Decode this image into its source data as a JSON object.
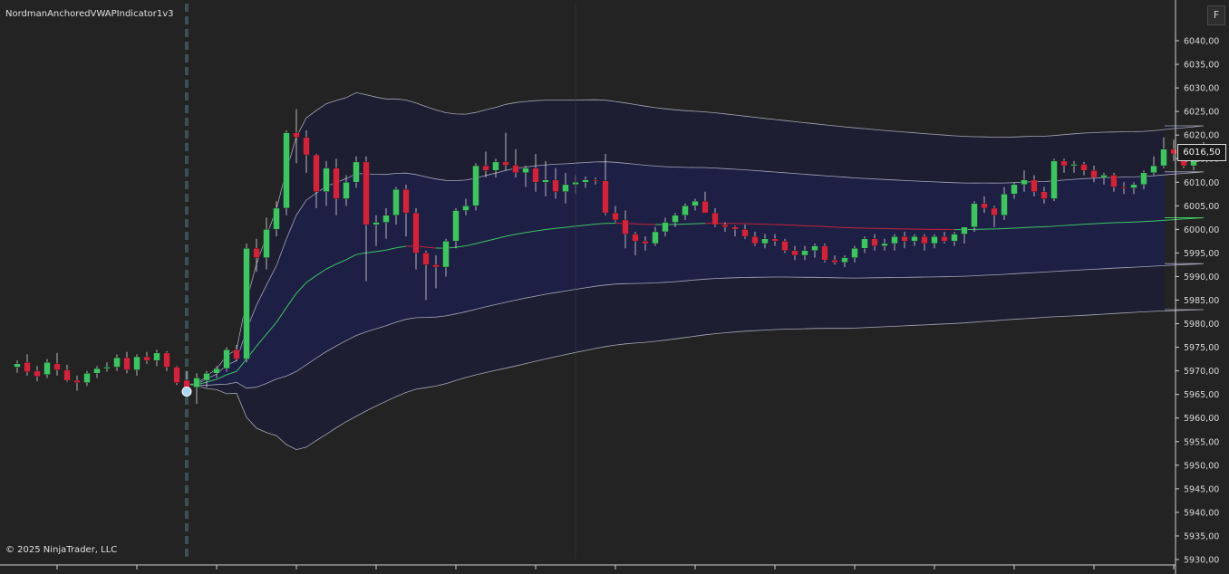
{
  "header": {
    "indicator_label": "NordmanAnchoredVWAPIndicator1v3",
    "f_button": "F"
  },
  "footer": {
    "copyright": "© 2025 NinjaTrader, LLC"
  },
  "colors": {
    "background": "#232323",
    "up": "#3fc463",
    "down": "#d0233c",
    "vwap_above": "#3fc463",
    "vwap_below": "#c8233c",
    "inner_band_fill": "#1d1f45",
    "outer_band_fill": "#1e1e32",
    "band_line": "#c8c8d8",
    "anchor_line": "#3b4f57"
  },
  "chart_data": {
    "type": "candlestick",
    "y_axis": {
      "ticks": [
        "6040,00",
        "6035,00",
        "6030,00",
        "6025,00",
        "6020,00",
        "6015,00",
        "6010,00",
        "6005,00",
        "6000,00",
        "5995,00",
        "5990,00",
        "5985,00",
        "5980,00",
        "5975,00",
        "5970,00",
        "5965,00",
        "5960,00",
        "5955,00",
        "5950,00",
        "5945,00",
        "5940,00",
        "5935,00",
        "5930,00"
      ],
      "range": [
        5929,
        6045
      ]
    },
    "last_price": "6016,50",
    "anchor_index": 17,
    "candles": [
      [
        5970.8,
        5972.2,
        5969.6,
        5971.5
      ],
      [
        5971.8,
        5973.5,
        5969.0,
        5969.8
      ],
      [
        5970.0,
        5971.0,
        5967.8,
        5968.8
      ],
      [
        5969.2,
        5972.5,
        5968.5,
        5971.8
      ],
      [
        5971.5,
        5973.8,
        5969.0,
        5970.2
      ],
      [
        5970.2,
        5971.3,
        5967.7,
        5968.0
      ],
      [
        5968.0,
        5969.0,
        5965.8,
        5967.5
      ],
      [
        5967.5,
        5970.0,
        5966.8,
        5969.5
      ],
      [
        5969.5,
        5971.0,
        5968.5,
        5970.5
      ],
      [
        5970.5,
        5971.8,
        5969.8,
        5970.8
      ],
      [
        5970.8,
        5973.5,
        5970.0,
        5972.8
      ],
      [
        5972.8,
        5974.0,
        5969.5,
        5970.2
      ],
      [
        5970.2,
        5973.5,
        5969.0,
        5973.0
      ],
      [
        5973.0,
        5974.0,
        5971.5,
        5972.2
      ],
      [
        5972.2,
        5974.5,
        5971.0,
        5973.8
      ],
      [
        5973.8,
        5974.2,
        5970.0,
        5970.8
      ],
      [
        5970.8,
        5971.0,
        5967.0,
        5967.5
      ],
      [
        5968.0,
        5970.0,
        5965.5,
        5966.0
      ],
      [
        5966.5,
        5969.5,
        5963.0,
        5968.5
      ],
      [
        5968.0,
        5970.0,
        5966.5,
        5969.5
      ],
      [
        5969.5,
        5971.0,
        5968.5,
        5970.5
      ],
      [
        5970.5,
        5975.0,
        5969.8,
        5974.5
      ],
      [
        5974.5,
        5975.5,
        5972.0,
        5972.5
      ],
      [
        5972.5,
        5997.0,
        5971.8,
        5996.0
      ],
      [
        5996.0,
        5998.0,
        5991.0,
        5994.0
      ],
      [
        5994.0,
        6002.5,
        5991.5,
        6000.0
      ],
      [
        6000.0,
        6006.0,
        5998.5,
        6004.5
      ],
      [
        6004.5,
        6021.0,
        6003.0,
        6020.5
      ],
      [
        6020.5,
        6025.5,
        6014.0,
        6019.5
      ],
      [
        6019.5,
        6021.0,
        6012.0,
        6015.8
      ],
      [
        6015.8,
        6016.0,
        6004.5,
        6008.0
      ],
      [
        6008.0,
        6014.5,
        6005.0,
        6013.0
      ],
      [
        6013.0,
        6015.0,
        6003.0,
        6006.5
      ],
      [
        6006.5,
        6011.5,
        6005.0,
        6010.0
      ],
      [
        6010.0,
        6015.5,
        6008.8,
        6014.3
      ],
      [
        6014.3,
        6015.5,
        5989.0,
        6001.0
      ],
      [
        6001.0,
        6003.0,
        5996.5,
        6001.5
      ],
      [
        6001.5,
        6004.5,
        5998.0,
        6003.0
      ],
      [
        6003.0,
        6009.0,
        6001.0,
        6008.5
      ],
      [
        6008.5,
        6009.5,
        5998.5,
        6003.5
      ],
      [
        6003.5,
        6004.5,
        5991.5,
        5995.0
      ],
      [
        5995.0,
        5995.5,
        5985.0,
        5992.5
      ],
      [
        5992.5,
        5994.5,
        5987.5,
        5992.0
      ],
      [
        5992.0,
        5998.0,
        5990.0,
        5997.5
      ],
      [
        5997.5,
        6004.5,
        5996.0,
        6004.0
      ],
      [
        6004.0,
        6006.5,
        6003.0,
        6005.0
      ],
      [
        6005.0,
        6014.0,
        6004.0,
        6013.5
      ],
      [
        6013.5,
        6016.5,
        6011.0,
        6012.5
      ],
      [
        6012.5,
        6015.0,
        6011.0,
        6014.3
      ],
      [
        6014.3,
        6020.5,
        6012.5,
        6013.6
      ],
      [
        6013.6,
        6017.0,
        6011.0,
        6012.0
      ],
      [
        6012.0,
        6013.5,
        6009.0,
        6013.0
      ],
      [
        6013.0,
        6016.0,
        6008.0,
        6010.0
      ],
      [
        6010.0,
        6014.5,
        6007.0,
        6010.5
      ],
      [
        6010.5,
        6013.0,
        6006.5,
        6008.0
      ],
      [
        6008.0,
        6012.0,
        6005.5,
        6009.5
      ],
      [
        6009.5,
        6011.5,
        6007.5,
        6010.0
      ],
      [
        6010.0,
        6011.2,
        6008.8,
        6010.5
      ],
      [
        6010.5,
        6011.0,
        6009.5,
        6010.3
      ],
      [
        6010.3,
        6016.0,
        6003.0,
        6003.5
      ],
      [
        6003.5,
        6005.0,
        6001.5,
        6002.0
      ],
      [
        6002.0,
        6004.0,
        5996.0,
        5999.0
      ],
      [
        5999.0,
        5999.5,
        5994.5,
        5997.5
      ],
      [
        5997.5,
        5998.5,
        5995.5,
        5997.0
      ],
      [
        5997.0,
        6000.5,
        5996.5,
        5999.5
      ],
      [
        5999.5,
        6002.5,
        5998.5,
        6001.5
      ],
      [
        6001.5,
        6003.5,
        6000.5,
        6003.0
      ],
      [
        6003.0,
        6005.5,
        6002.0,
        6005.0
      ],
      [
        6005.0,
        6006.5,
        6004.0,
        6006.0
      ],
      [
        6006.0,
        6008.0,
        6003.5,
        6003.5
      ],
      [
        6003.5,
        6004.5,
        6000.5,
        6001.0
      ],
      [
        6001.0,
        6001.5,
        5999.5,
        6000.5
      ],
      [
        6000.5,
        6000.8,
        5998.5,
        6000.0
      ],
      [
        6000.0,
        6001.0,
        5998.0,
        5998.5
      ],
      [
        5998.5,
        5999.5,
        5996.5,
        5997.0
      ],
      [
        5997.0,
        5999.0,
        5996.0,
        5998.0
      ],
      [
        5998.0,
        5999.0,
        5996.5,
        5997.5
      ],
      [
        5997.5,
        5998.0,
        5995.0,
        5995.5
      ],
      [
        5995.5,
        5996.5,
        5993.5,
        5994.5
      ],
      [
        5994.5,
        5996.5,
        5993.5,
        5995.5
      ],
      [
        5995.5,
        5997.0,
        5994.0,
        5996.5
      ],
      [
        5996.5,
        5997.0,
        5993.0,
        5993.5
      ],
      [
        5993.5,
        5994.5,
        5992.5,
        5993.0
      ],
      [
        5993.0,
        5994.5,
        5992.0,
        5994.0
      ],
      [
        5994.0,
        5996.5,
        5993.0,
        5996.0
      ],
      [
        5996.0,
        5998.5,
        5995.0,
        5998.0
      ],
      [
        5998.0,
        5999.0,
        5995.5,
        5996.5
      ],
      [
        5996.5,
        5998.0,
        5995.5,
        5997.0
      ],
      [
        5997.0,
        5999.0,
        5995.5,
        5998.5
      ],
      [
        5998.5,
        5999.5,
        5996.0,
        5997.5
      ],
      [
        5997.5,
        5999.0,
        5996.5,
        5998.5
      ],
      [
        5998.5,
        5999.0,
        5995.5,
        5997.0
      ],
      [
        5997.0,
        5999.0,
        5996.0,
        5998.5
      ],
      [
        5998.5,
        5999.5,
        5997.0,
        5997.5
      ],
      [
        5997.5,
        5999.5,
        5996.5,
        5999.0
      ],
      [
        5999.0,
        6000.5,
        5997.0,
        6000.5
      ],
      [
        6000.5,
        6006.0,
        5999.5,
        6005.5
      ],
      [
        6005.5,
        6007.0,
        6003.5,
        6004.5
      ],
      [
        6004.5,
        6005.0,
        6000.5,
        6003.0
      ],
      [
        6003.0,
        6009.0,
        6002.0,
        6007.5
      ],
      [
        6007.5,
        6010.0,
        6006.5,
        6009.5
      ],
      [
        6009.5,
        6012.5,
        6008.0,
        6010.5
      ],
      [
        6010.5,
        6011.5,
        6007.0,
        6008.0
      ],
      [
        6008.0,
        6009.0,
        6005.5,
        6006.5
      ],
      [
        6006.5,
        6015.0,
        6006.0,
        6014.5
      ],
      [
        6014.5,
        6015.0,
        6012.0,
        6013.5
      ],
      [
        6013.5,
        6014.5,
        6012.0,
        6013.8
      ],
      [
        6013.8,
        6014.3,
        6011.5,
        6012.5
      ],
      [
        6012.5,
        6013.5,
        6010.0,
        6011.0
      ],
      [
        6011.0,
        6012.0,
        6009.5,
        6011.5
      ],
      [
        6011.5,
        6012.0,
        6008.0,
        6009.0
      ],
      [
        6009.0,
        6010.0,
        6007.5,
        6008.8
      ],
      [
        6008.8,
        6010.0,
        6007.5,
        6009.5
      ],
      [
        6009.5,
        6012.5,
        6008.5,
        6012.0
      ],
      [
        6012.0,
        6015.5,
        6011.5,
        6013.5
      ],
      [
        6013.5,
        6019.5,
        6013.0,
        6017.0
      ],
      [
        6017.0,
        6019.0,
        6014.5,
        6016.0
      ],
      [
        6016.0,
        6018.0,
        6013.0,
        6013.5
      ],
      [
        6013.5,
        6017.5,
        6012.5,
        6017.0
      ],
      [
        6017.0,
        6018.5,
        6015.5,
        6016.5
      ]
    ]
  }
}
